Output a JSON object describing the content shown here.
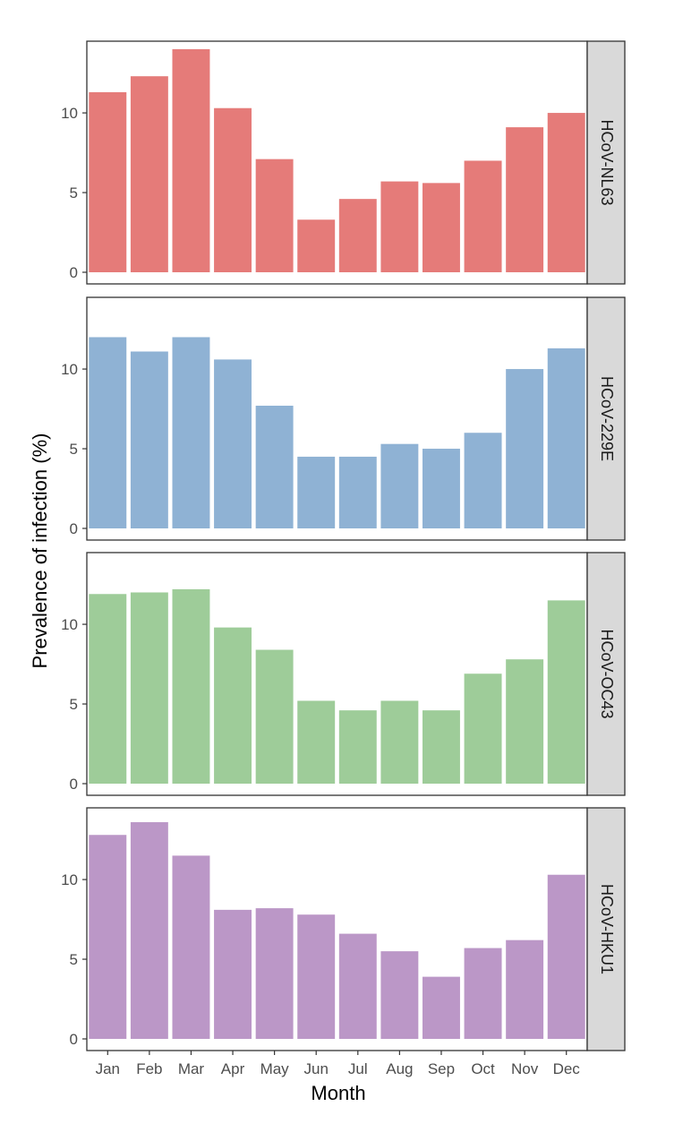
{
  "chart_data": {
    "type": "bar",
    "layout": "faceted-vertical",
    "xlabel": "Month",
    "ylabel": "Prevalence of infection (%)",
    "categories": [
      "Jan",
      "Feb",
      "Mar",
      "Apr",
      "May",
      "Jun",
      "Jul",
      "Aug",
      "Sep",
      "Oct",
      "Nov",
      "Dec"
    ],
    "yticks": [
      0,
      5,
      10
    ],
    "ylim": [
      0,
      14.5
    ],
    "grid": false,
    "series": [
      {
        "name": "HCoV-NL63",
        "color": "#e57b79",
        "values": [
          11.3,
          12.3,
          14.0,
          10.3,
          7.1,
          3.3,
          4.6,
          5.7,
          5.6,
          7.0,
          9.1,
          10.0
        ]
      },
      {
        "name": "HCoV-229E",
        "color": "#8fb2d4",
        "values": [
          12.0,
          11.1,
          12.0,
          10.6,
          7.7,
          4.5,
          4.5,
          5.3,
          5.0,
          6.0,
          10.0,
          11.3
        ]
      },
      {
        "name": "HCoV-OC43",
        "color": "#9ecc99",
        "values": [
          11.9,
          12.0,
          12.2,
          9.8,
          8.4,
          5.2,
          4.6,
          5.2,
          4.6,
          6.9,
          7.8,
          11.5
        ]
      },
      {
        "name": "HCoV-HKU1",
        "color": "#bb97c7",
        "values": [
          12.8,
          13.6,
          11.5,
          8.1,
          8.2,
          7.8,
          6.6,
          5.5,
          3.9,
          5.7,
          6.2,
          10.3
        ]
      }
    ]
  }
}
